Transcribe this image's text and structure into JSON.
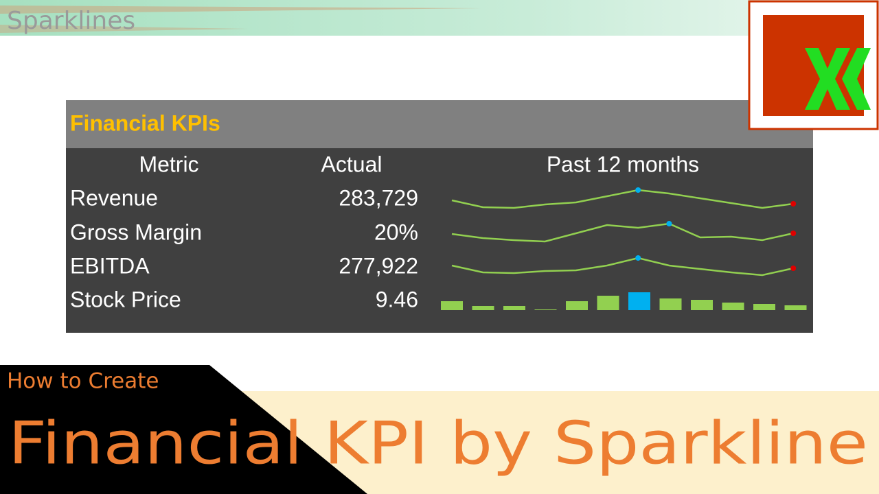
{
  "header": {
    "title": "Sparklines"
  },
  "table": {
    "title": "Financial KPIs",
    "columns": [
      "Metric",
      "Actual",
      "Past 12 months"
    ],
    "line_color": "#92d050",
    "high_color": "#00b0f0",
    "last_color": "#e00000",
    "rows": [
      {
        "metric": "Revenue",
        "actual": "283,729",
        "sparkline": {
          "type": "line",
          "values": [
            28,
            18,
            17,
            22,
            25,
            34,
            43,
            38,
            31,
            24,
            17,
            23
          ]
        }
      },
      {
        "metric": "Gross Margin",
        "actual": "20%",
        "sparkline": {
          "type": "line",
          "values": [
            19,
            13,
            10,
            8,
            20,
            32,
            28,
            34,
            14,
            15,
            10,
            20
          ]
        }
      },
      {
        "metric": "EBITDA",
        "actual": "277,922",
        "sparkline": {
          "type": "line",
          "values": [
            23,
            13,
            12,
            15,
            16,
            23,
            34,
            23,
            18,
            13,
            9,
            19
          ]
        }
      },
      {
        "metric": "Stock Price",
        "actual": "9.46",
        "sparkline": {
          "type": "bar",
          "values": [
            13,
            6,
            6,
            1,
            13,
            21,
            26,
            17,
            15,
            11,
            9,
            7
          ]
        }
      }
    ]
  },
  "banner": {
    "subtitle": "How to Create",
    "title": "Financial KPI by Sparkline"
  }
}
